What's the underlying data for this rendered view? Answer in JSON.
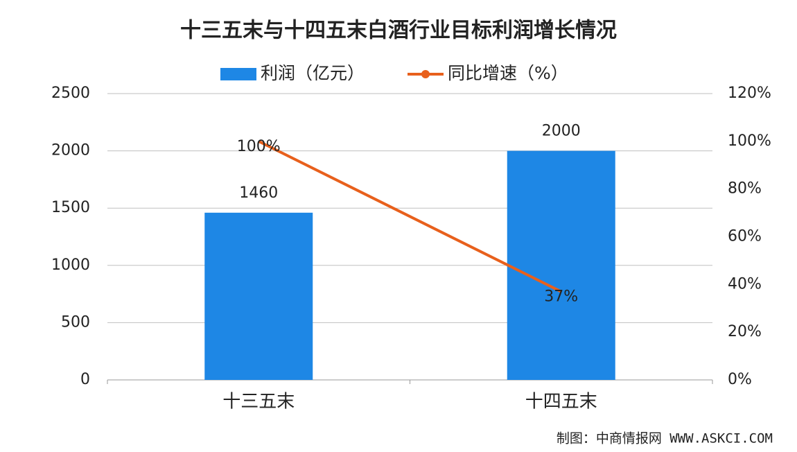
{
  "chart_data": {
    "type": "bar",
    "title": "十三五末与十四五末白酒行业目标利润增长情况",
    "categories": [
      "十三五末",
      "十四五末"
    ],
    "series": [
      {
        "name": "利润（亿元）",
        "type": "bar",
        "color": "#1e87e5",
        "values": [
          1460,
          2000
        ]
      },
      {
        "name": "同比增速（%）",
        "type": "line",
        "axis": "y2",
        "color": "#e8601c",
        "values": [
          100,
          37
        ],
        "value_labels": [
          "100%",
          "37%"
        ]
      }
    ],
    "ylim": [
      0,
      2500
    ],
    "yticks": [
      0,
      500,
      1000,
      1500,
      2000,
      2500
    ],
    "y2lim": [
      0,
      120
    ],
    "y2ticks": [
      {
        "value": 0,
        "label": "0%"
      },
      {
        "value": 20,
        "label": "20%"
      },
      {
        "value": 40,
        "label": "40%"
      },
      {
        "value": 60,
        "label": "60%"
      },
      {
        "value": 80,
        "label": "80%"
      },
      {
        "value": 100,
        "label": "100%"
      },
      {
        "value": 120,
        "label": "120%"
      }
    ],
    "grid": true,
    "legend": "top"
  },
  "source": "制图：中商情报网 WWW.ASKCI.COM"
}
